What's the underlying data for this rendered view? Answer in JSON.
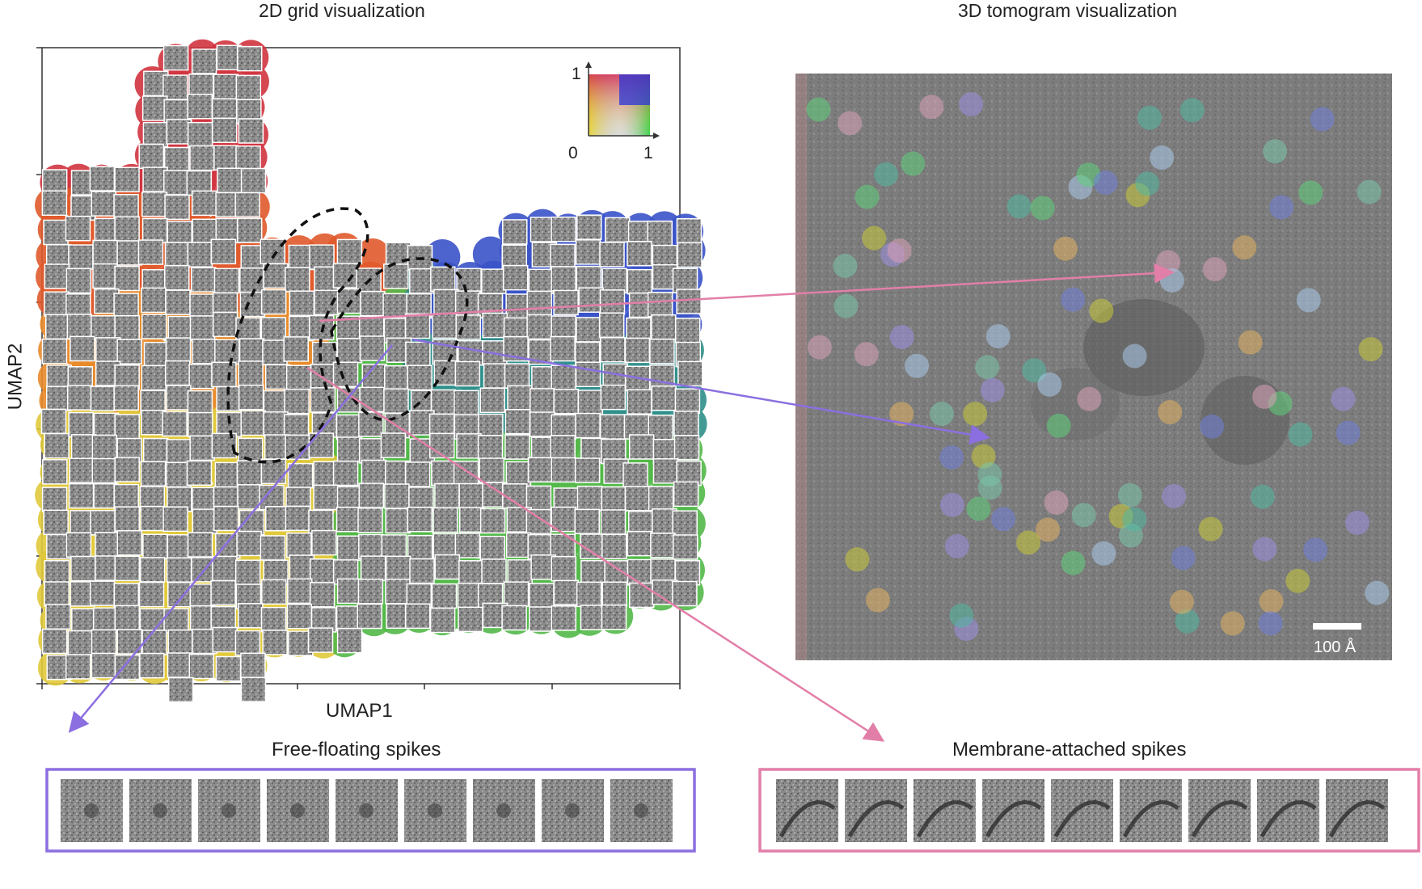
{
  "titles": {
    "left": "2D grid visualization",
    "right": "3D tomogram visualization"
  },
  "axes": {
    "x_label": "UMAP1",
    "y_label": "UMAP2"
  },
  "colorbar": {
    "y_max": "1",
    "origin": "0",
    "x_max": "1"
  },
  "tomogram": {
    "scale_bar_label": "100 Å"
  },
  "panels": {
    "free_floating": {
      "title": "Free-floating spikes",
      "count": 9,
      "border_color": "#8b6fe0"
    },
    "membrane": {
      "title": "Membrane-attached spikes",
      "count": 9,
      "border_color": "#e27fa8"
    }
  },
  "colors": {
    "purple_arrow": "#8b6fe0",
    "pink_arrow": "#e27fa8"
  }
}
